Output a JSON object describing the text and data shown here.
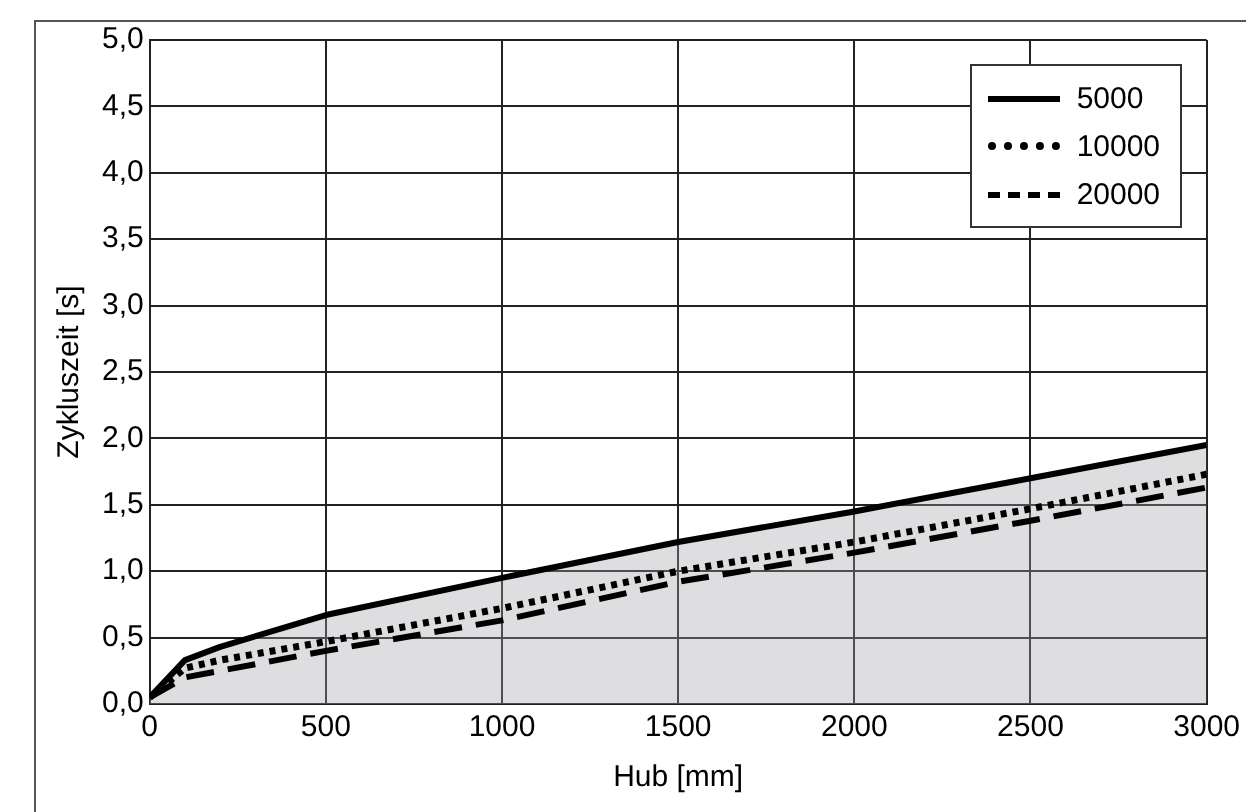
{
  "chart_data": {
    "type": "line",
    "xlabel": "Hub [mm]",
    "ylabel": "Zykluszeit [s]",
    "x": [
      0,
      100,
      200,
      500,
      1000,
      1500,
      2000,
      2500,
      3000
    ],
    "series": [
      {
        "name": "5000",
        "color": "#000000",
        "type": "area",
        "line_style": "solid",
        "values": [
          0.05,
          0.33,
          0.43,
          0.67,
          0.95,
          1.22,
          1.45,
          1.7,
          1.95
        ]
      },
      {
        "name": "10000",
        "color": "#000000",
        "line_style": "dotted",
        "values": [
          0.05,
          0.27,
          0.33,
          0.47,
          0.72,
          1.0,
          1.22,
          1.47,
          1.73
        ]
      },
      {
        "name": "20000",
        "color": "#000000",
        "line_style": "dashed",
        "values": [
          0.05,
          0.2,
          0.25,
          0.4,
          0.63,
          0.92,
          1.14,
          1.38,
          1.63
        ]
      }
    ],
    "xlim": [
      0,
      3000
    ],
    "xticks": [
      0,
      500,
      1000,
      1500,
      2000,
      2500,
      3000
    ],
    "ylim": [
      0,
      5
    ],
    "yticks": [
      {
        "value": 0,
        "label": "0,0"
      },
      {
        "value": 0.5,
        "label": "0,5"
      },
      {
        "value": 1,
        "label": "1,0"
      },
      {
        "value": 1.5,
        "label": "1,5"
      },
      {
        "value": 2,
        "label": "2,0"
      },
      {
        "value": 2.5,
        "label": "2,5"
      },
      {
        "value": 3,
        "label": "3,0"
      },
      {
        "value": 3.5,
        "label": "3,5"
      },
      {
        "value": 4,
        "label": "4,0"
      },
      {
        "value": 4.5,
        "label": "4,5"
      },
      {
        "value": 5,
        "label": "5,0"
      }
    ],
    "grid": true,
    "legend": "top right",
    "marker": "none"
  }
}
